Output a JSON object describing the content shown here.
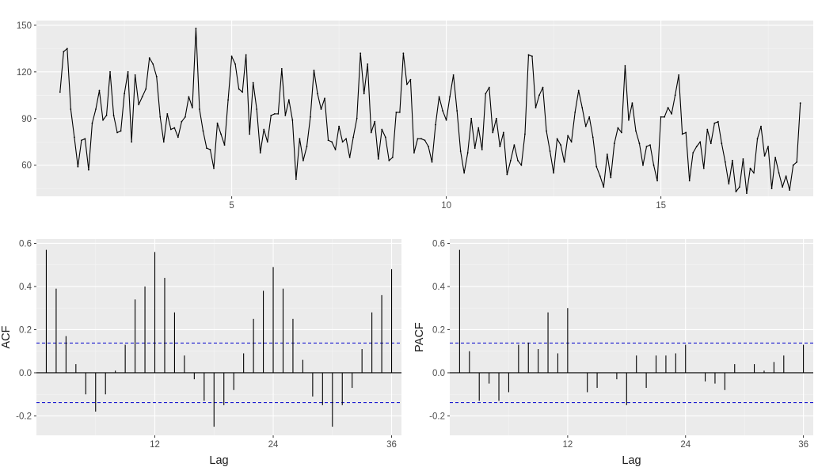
{
  "colors": {
    "panel": "#ebebeb",
    "grid_major": "#ffffff",
    "grid_minor": "#f5f5f5",
    "series": "#000000",
    "ci_line": "#0000cc",
    "tick_text": "#4d4d4d",
    "axis_title": "#1a1a1a"
  },
  "chart_data": [
    {
      "type": "line",
      "title": "",
      "xlabel": "",
      "ylabel": "",
      "xlim": [
        0.45,
        18.55
      ],
      "ylim": [
        40,
        153
      ],
      "x_ticks": [
        5,
        10,
        15
      ],
      "y_ticks": [
        60,
        90,
        120,
        150
      ],
      "x_start": 1,
      "x_step": 0.08333,
      "values": [
        107,
        133,
        135,
        96,
        78,
        59,
        76,
        77,
        57,
        87,
        96,
        108,
        89,
        92,
        120,
        92,
        81,
        82,
        106,
        120,
        75,
        118,
        99,
        104,
        109,
        129,
        125,
        117,
        91,
        75,
        93,
        83,
        84,
        78,
        88,
        91,
        104,
        97,
        148,
        96,
        82,
        71,
        70,
        58,
        87,
        80,
        73,
        102,
        130,
        125,
        109,
        107,
        131,
        80,
        113,
        96,
        68,
        83,
        75,
        92,
        93,
        93,
        122,
        92,
        102,
        89,
        51,
        77,
        63,
        72,
        91,
        121,
        106,
        96,
        103,
        76,
        75,
        70,
        85,
        75,
        77,
        65,
        78,
        90,
        132,
        106,
        125,
        81,
        88,
        64,
        83,
        78,
        63,
        65,
        94,
        94,
        132,
        112,
        115,
        68,
        77,
        77,
        76,
        72,
        62,
        86,
        104,
        95,
        89,
        104,
        118,
        95,
        69,
        55,
        68,
        90,
        71,
        84,
        70,
        106,
        110,
        81,
        90,
        72,
        81,
        54,
        63,
        73,
        63,
        60,
        80,
        131,
        130,
        97,
        105,
        110,
        82,
        69,
        55,
        77,
        73,
        62,
        79,
        75,
        94,
        108,
        97,
        85,
        91,
        78,
        59,
        53,
        46,
        67,
        52,
        74,
        84,
        81,
        124,
        89,
        100,
        82,
        74,
        60,
        72,
        73,
        60,
        50,
        91,
        91,
        97,
        93,
        105,
        118,
        80,
        81,
        50,
        68,
        72,
        75,
        58,
        83,
        74,
        87,
        88,
        74,
        62,
        48,
        63,
        43,
        46,
        64,
        42,
        58,
        55,
        77,
        85,
        66,
        72,
        45,
        65,
        55,
        46,
        53,
        44,
        60,
        62,
        100
      ]
    },
    {
      "type": "bar",
      "title": "",
      "xlabel": "Lag",
      "ylabel": "ACF",
      "xlim": [
        0,
        37
      ],
      "ylim": [
        -0.29,
        0.62
      ],
      "x_ticks": [
        12,
        24,
        36
      ],
      "y_ticks": [
        -0.2,
        0.0,
        0.2,
        0.4,
        0.6
      ],
      "y_tick_labels": [
        "-0.2",
        "0.0",
        "0.2",
        "0.4",
        "0.6"
      ],
      "ci": 0.138,
      "lags": [
        1,
        2,
        3,
        4,
        5,
        6,
        7,
        8,
        9,
        10,
        11,
        12,
        13,
        14,
        15,
        16,
        17,
        18,
        19,
        20,
        21,
        22,
        23,
        24,
        25,
        26,
        27,
        28,
        29,
        30,
        31,
        32,
        33,
        34,
        35,
        36
      ],
      "values": [
        0.57,
        0.39,
        0.17,
        0.04,
        -0.1,
        -0.18,
        -0.1,
        0.01,
        0.13,
        0.34,
        0.4,
        0.56,
        0.44,
        0.28,
        0.08,
        -0.03,
        -0.13,
        -0.25,
        -0.15,
        -0.08,
        0.09,
        0.25,
        0.38,
        0.49,
        0.39,
        0.25,
        0.06,
        -0.11,
        -0.15,
        -0.25,
        -0.15,
        -0.07,
        0.11,
        0.28,
        0.36,
        0.48
      ]
    },
    {
      "type": "bar",
      "title": "",
      "xlabel": "Lag",
      "ylabel": "PACF",
      "xlim": [
        0,
        37
      ],
      "ylim": [
        -0.29,
        0.62
      ],
      "x_ticks": [
        12,
        24,
        36
      ],
      "y_ticks": [
        -0.2,
        0.0,
        0.2,
        0.4,
        0.6
      ],
      "y_tick_labels": [
        "-0.2",
        "0.0",
        "0.2",
        "0.4",
        "0.6"
      ],
      "ci": 0.138,
      "lags": [
        1,
        2,
        3,
        4,
        5,
        6,
        7,
        8,
        9,
        10,
        11,
        12,
        13,
        14,
        15,
        16,
        17,
        18,
        19,
        20,
        21,
        22,
        23,
        24,
        25,
        26,
        27,
        28,
        29,
        30,
        31,
        32,
        33,
        34,
        35,
        36
      ],
      "values": [
        0.57,
        0.1,
        -0.13,
        -0.05,
        -0.13,
        -0.09,
        0.13,
        0.14,
        0.11,
        0.28,
        0.09,
        0.3,
        0.0,
        -0.09,
        -0.07,
        0.0,
        -0.03,
        -0.15,
        0.08,
        -0.07,
        0.08,
        0.08,
        0.09,
        0.13,
        0.0,
        -0.04,
        -0.05,
        -0.08,
        0.04,
        0.0,
        0.04,
        0.01,
        0.05,
        0.08,
        0.0,
        0.13
      ]
    }
  ]
}
